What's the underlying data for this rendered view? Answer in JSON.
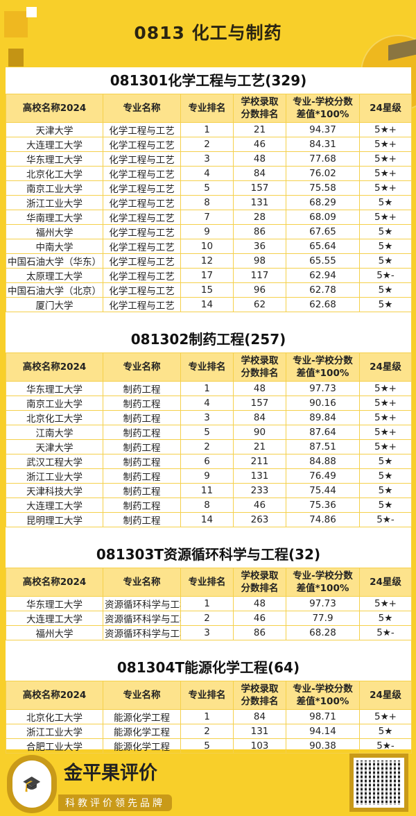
{
  "header": {
    "title": "0813   化工与制药"
  },
  "columns": [
    "高校名称2024",
    "专业名称",
    "专业排名",
    "学校录取\n分数排名",
    "专业-学校分数\n差值*100%",
    "24星级"
  ],
  "sections": [
    {
      "title": "081301化学工程与工艺(329)",
      "rows": [
        [
          "天津大学",
          "化学工程与工艺",
          "1",
          "21",
          "94.37",
          "5★+"
        ],
        [
          "大连理工大学",
          "化学工程与工艺",
          "2",
          "46",
          "84.31",
          "5★+"
        ],
        [
          "华东理工大学",
          "化学工程与工艺",
          "3",
          "48",
          "77.68",
          "5★+"
        ],
        [
          "北京化工大学",
          "化学工程与工艺",
          "4",
          "84",
          "76.02",
          "5★+"
        ],
        [
          "南京工业大学",
          "化学工程与工艺",
          "5",
          "157",
          "75.58",
          "5★+"
        ],
        [
          "浙江工业大学",
          "化学工程与工艺",
          "8",
          "131",
          "68.29",
          "5★"
        ],
        [
          "华南理工大学",
          "化学工程与工艺",
          "7",
          "28",
          "68.09",
          "5★+"
        ],
        [
          "福州大学",
          "化学工程与工艺",
          "9",
          "86",
          "67.65",
          "5★"
        ],
        [
          "中南大学",
          "化学工程与工艺",
          "10",
          "36",
          "65.64",
          "5★"
        ],
        [
          "中国石油大学（华东）",
          "化学工程与工艺",
          "12",
          "98",
          "65.55",
          "5★"
        ],
        [
          "太原理工大学",
          "化学工程与工艺",
          "17",
          "117",
          "62.94",
          "5★-"
        ],
        [
          "中国石油大学（北京）",
          "化学工程与工艺",
          "15",
          "96",
          "62.78",
          "5★"
        ],
        [
          "厦门大学",
          "化学工程与工艺",
          "14",
          "62",
          "62.68",
          "5★"
        ]
      ]
    },
    {
      "title": "081302制药工程(257)",
      "rows": [
        [
          "华东理工大学",
          "制药工程",
          "1",
          "48",
          "97.73",
          "5★+"
        ],
        [
          "南京工业大学",
          "制药工程",
          "4",
          "157",
          "90.16",
          "5★+"
        ],
        [
          "北京化工大学",
          "制药工程",
          "3",
          "84",
          "89.84",
          "5★+"
        ],
        [
          "江南大学",
          "制药工程",
          "5",
          "90",
          "87.64",
          "5★+"
        ],
        [
          "天津大学",
          "制药工程",
          "2",
          "21",
          "87.51",
          "5★+"
        ],
        [
          "武汉工程大学",
          "制药工程",
          "6",
          "211",
          "84.88",
          "5★"
        ],
        [
          "浙江工业大学",
          "制药工程",
          "9",
          "131",
          "76.49",
          "5★"
        ],
        [
          "天津科技大学",
          "制药工程",
          "11",
          "233",
          "75.44",
          "5★"
        ],
        [
          "大连理工大学",
          "制药工程",
          "8",
          "46",
          "75.36",
          "5★"
        ],
        [
          "昆明理工大学",
          "制药工程",
          "14",
          "263",
          "74.86",
          "5★-"
        ]
      ]
    },
    {
      "title": "081303T资源循环科学与工程(32)",
      "rows": [
        [
          "华东理工大学",
          "资源循环科学与工程",
          "1",
          "48",
          "97.73",
          "5★+"
        ],
        [
          "大连理工大学",
          "资源循环科学与工程",
          "2",
          "46",
          "77.9",
          "5★"
        ],
        [
          "福州大学",
          "资源循环科学与工程",
          "3",
          "86",
          "68.28",
          "5★-"
        ]
      ]
    },
    {
      "title": "081304T能源化学工程(64)",
      "rows": [
        [
          "北京化工大学",
          "能源化学工程",
          "1",
          "84",
          "98.71",
          "5★+"
        ],
        [
          "浙江工业大学",
          "能源化学工程",
          "2",
          "131",
          "94.14",
          "5★"
        ],
        [
          "合肥工业大学",
          "能源化学工程",
          "5",
          "103",
          "90.38",
          "5★-"
        ]
      ]
    }
  ],
  "footer": {
    "brand": "金平果评价",
    "slogan": "科教评价领先品牌",
    "logo_text": "金平果"
  },
  "colors": {
    "background": "#f8cf2a",
    "header_row": "#fde38c",
    "border": "#f5d04a"
  }
}
